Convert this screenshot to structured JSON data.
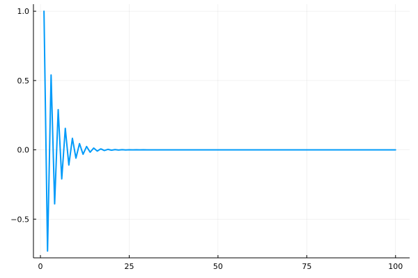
{
  "chart_data": {
    "type": "line",
    "title": "",
    "xlabel": "",
    "ylabel": "",
    "xlim": [
      -1.97,
      103.97
    ],
    "ylim": [
      -0.7792,
      1.0509
    ],
    "x_ticks": [
      0,
      25,
      50,
      75,
      100
    ],
    "x_tick_labels": [
      "0",
      "25",
      "50",
      "75",
      "100"
    ],
    "y_ticks": [
      -0.5,
      0.0,
      0.5,
      1.0
    ],
    "y_tick_labels": [
      "−0.5",
      "0.0",
      "0.5",
      "1.0"
    ],
    "grid": true,
    "legend": "none",
    "series": [
      {
        "color": "#009af9",
        "x": [
          1,
          2,
          3,
          4,
          5,
          6,
          7,
          8,
          9,
          10,
          11,
          12,
          13,
          14,
          15,
          16,
          17,
          18,
          19,
          20,
          21,
          22,
          23,
          24,
          25,
          26,
          27,
          28,
          29,
          30,
          31,
          32,
          33,
          34,
          35,
          36,
          37,
          38,
          39,
          40,
          41,
          42,
          43,
          44,
          45,
          46,
          47,
          48,
          49,
          50,
          51,
          52,
          53,
          54,
          55,
          56,
          57,
          58,
          59,
          60,
          61,
          62,
          63,
          64,
          65,
          66,
          67,
          68,
          69,
          70,
          71,
          72,
          73,
          74,
          75,
          76,
          77,
          78,
          79,
          80,
          81,
          82,
          83,
          84,
          85,
          86,
          87,
          88,
          89,
          90,
          91,
          92,
          93,
          94,
          95,
          96,
          97,
          98,
          99,
          100
        ],
        "y": [
          1.0,
          -0.73,
          0.54,
          -0.39,
          0.29,
          -0.21,
          0.155,
          -0.11,
          0.083,
          -0.06,
          0.045,
          -0.032,
          0.024,
          -0.017,
          0.013,
          -0.009,
          0.007,
          -0.005,
          0.0035,
          -0.0025,
          0.0018,
          -0.0013,
          0.001,
          -0.0007,
          0.0005,
          -0.0004,
          0.0003,
          -0.0002,
          0.00015,
          -0.0001,
          8e-05,
          -6e-05,
          4e-05,
          -3e-05,
          2e-05,
          -2e-05,
          1e-05,
          -1e-05,
          1e-05,
          0,
          0,
          0,
          0,
          0,
          0,
          0,
          0,
          0,
          0,
          0,
          0,
          0,
          0,
          0,
          0,
          0,
          0,
          0,
          0,
          0,
          0,
          0,
          0,
          0,
          0,
          0,
          0,
          0,
          0,
          0,
          0,
          0,
          0,
          0,
          0,
          0,
          0,
          0,
          0,
          0,
          0,
          0,
          0,
          0,
          0,
          0,
          0,
          0,
          0,
          0,
          0,
          0,
          0,
          0,
          0,
          0,
          0,
          0,
          0,
          0
        ]
      }
    ]
  }
}
